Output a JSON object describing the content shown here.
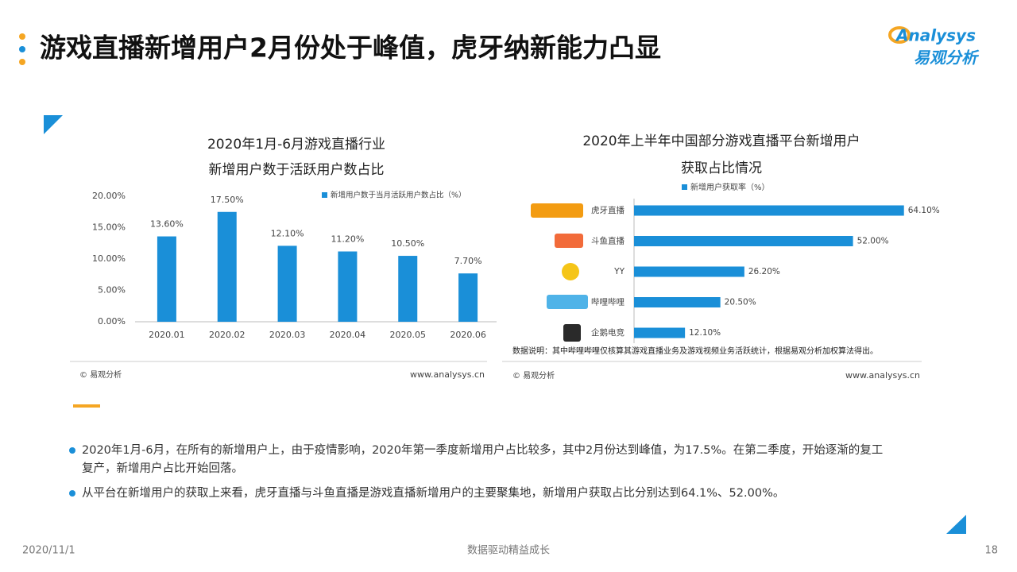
{
  "header": {
    "title": "游戏直播新增用户2月份处于峰值，虎牙纳新能力凸显",
    "logo_text": "Analysys",
    "logo_sub": "易观分析"
  },
  "chart_data": [
    {
      "type": "bar",
      "title_lines": [
        "2020年1月-6月游戏直播行业",
        "新增用户数于活跃用户数占比"
      ],
      "categories": [
        "2020.01",
        "2020.02",
        "2020.03",
        "2020.04",
        "2020.05",
        "2020.06"
      ],
      "series": [
        {
          "name": "新增用户数于当月活跃用户数占比（%）",
          "color": "#1a8fd8",
          "values": [
            13.6,
            17.5,
            12.1,
            11.2,
            10.5,
            7.7
          ],
          "value_labels": [
            "13.60%",
            "17.50%",
            "12.10%",
            "11.20%",
            "10.50%",
            "7.70%"
          ]
        }
      ],
      "ylim": [
        0,
        20
      ],
      "yticks": [
        {
          "value": 0,
          "label": "0.00%"
        },
        {
          "value": 5,
          "label": "5.00%"
        },
        {
          "value": 10,
          "label": "10.00%"
        },
        {
          "value": 15,
          "label": "15.00%"
        },
        {
          "value": 20,
          "label": "20.00%"
        }
      ],
      "source": "© 易观分析",
      "website": "www.analysys.cn"
    },
    {
      "type": "hbar",
      "title_lines": [
        "2020年上半年中国部分游戏直播平台新增用户",
        "获取占比情况"
      ],
      "categories": [
        "虎牙直播",
        "斗鱼直播",
        "YY",
        "哔哩哔哩",
        "企鹅电竞"
      ],
      "series": [
        {
          "name": "新增用户获取率（%）",
          "color": "#1a8fd8",
          "values": [
            64.1,
            52.0,
            26.2,
            20.5,
            12.1
          ],
          "value_labels": [
            "64.10%",
            "52.00%",
            "26.20%",
            "20.50%",
            "12.10%"
          ]
        }
      ],
      "note": "数据说明：其中哔哩哔哩仅核算其游戏直播业务及游戏视频业务活跃统计，根据易观分析加权算法得出。",
      "source": "© 易观分析",
      "website": "www.analysys.cn"
    }
  ],
  "bullets": [
    [
      "2020年1月-6月，在所有的新增用户上，由于疫情影响，2020年第一季度新增用户占比较多，其中2月份达到峰值，为17.5%。在第二季度，开始逐渐的复工",
      "复产，新增用户占比开始回落。"
    ],
    [
      "从平台在新增用户的获取上来看，虎牙直播与斗鱼直播是游戏直播新增用户的主要聚集地，新增用户获取占比分别达到64.1%、52.00%。"
    ]
  ],
  "footer": {
    "date": "2020/11/1",
    "slogan": "数据驱动精益成长",
    "page": "18"
  }
}
